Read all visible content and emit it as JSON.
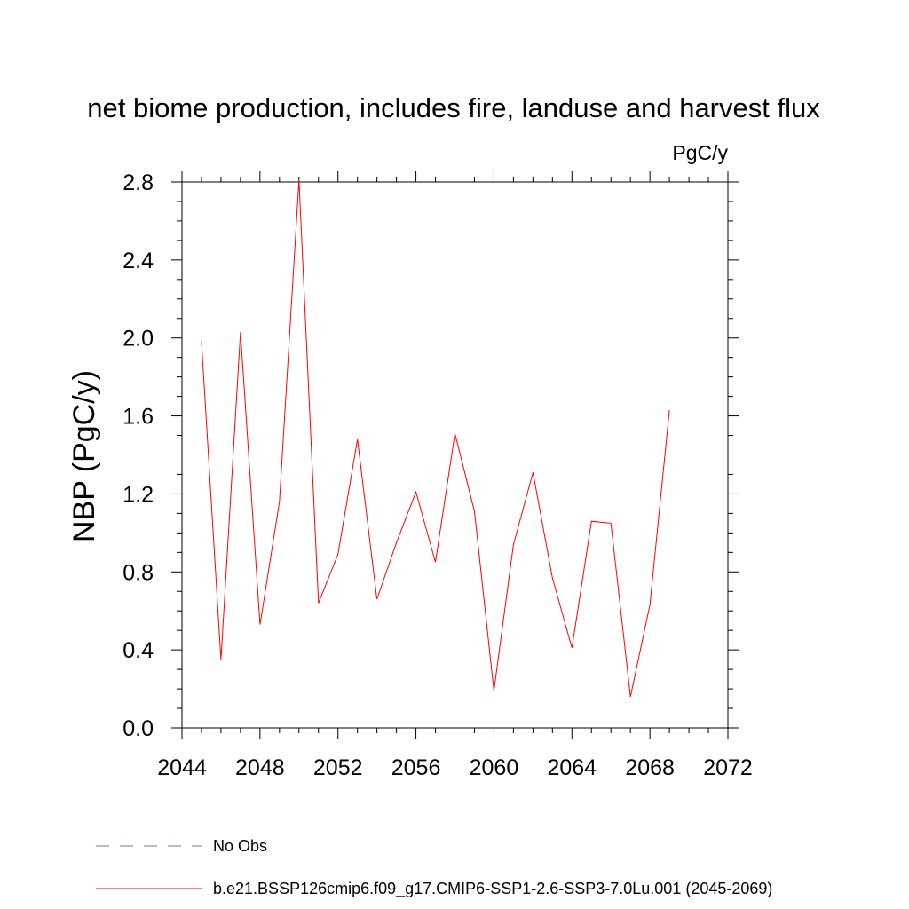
{
  "chart_data": {
    "type": "line",
    "title": "net biome production, includes fire, landuse and harvest flux",
    "units": "PgC/y",
    "xlabel": "",
    "ylabel": "NBP  (PgC/y)",
    "xlim": [
      2044,
      2072
    ],
    "ylim": [
      0.0,
      2.8
    ],
    "x_ticks": [
      "2044",
      "2048",
      "2052",
      "2056",
      "2060",
      "2064",
      "2068",
      "2072"
    ],
    "y_ticks": [
      "0.0",
      "0.4",
      "0.8",
      "1.2",
      "1.6",
      "2.0",
      "2.4",
      "2.8"
    ],
    "grid": false,
    "series": [
      {
        "name": "b.e21.BSSP126cmip6.f09_g17.CMIP6-SSP1-2.6-SSP3-7.0Lu.001 (2045-2069)",
        "color": "#ff0000",
        "x": [
          2045,
          2046,
          2047,
          2048,
          2049,
          2050,
          2051,
          2052,
          2053,
          2054,
          2055,
          2056,
          2057,
          2058,
          2059,
          2060,
          2061,
          2062,
          2063,
          2064,
          2065,
          2066,
          2067,
          2068,
          2069
        ],
        "y": [
          1.98,
          0.35,
          2.03,
          0.53,
          1.16,
          2.81,
          0.64,
          0.89,
          1.48,
          0.66,
          0.95,
          1.21,
          0.85,
          1.51,
          1.11,
          0.19,
          0.94,
          1.31,
          0.77,
          0.41,
          1.06,
          1.05,
          0.16,
          0.63,
          1.63
        ]
      }
    ],
    "legend": [
      {
        "label": "No Obs",
        "color": "#7b6fb5",
        "style": "dashed"
      },
      {
        "label": "b.e21.BSSP126cmip6.f09_g17.CMIP6-SSP1-2.6-SSP3-7.0Lu.001 (2045-2069)",
        "color": "#ff0000",
        "style": "solid"
      }
    ],
    "legend_position": "bottom"
  }
}
